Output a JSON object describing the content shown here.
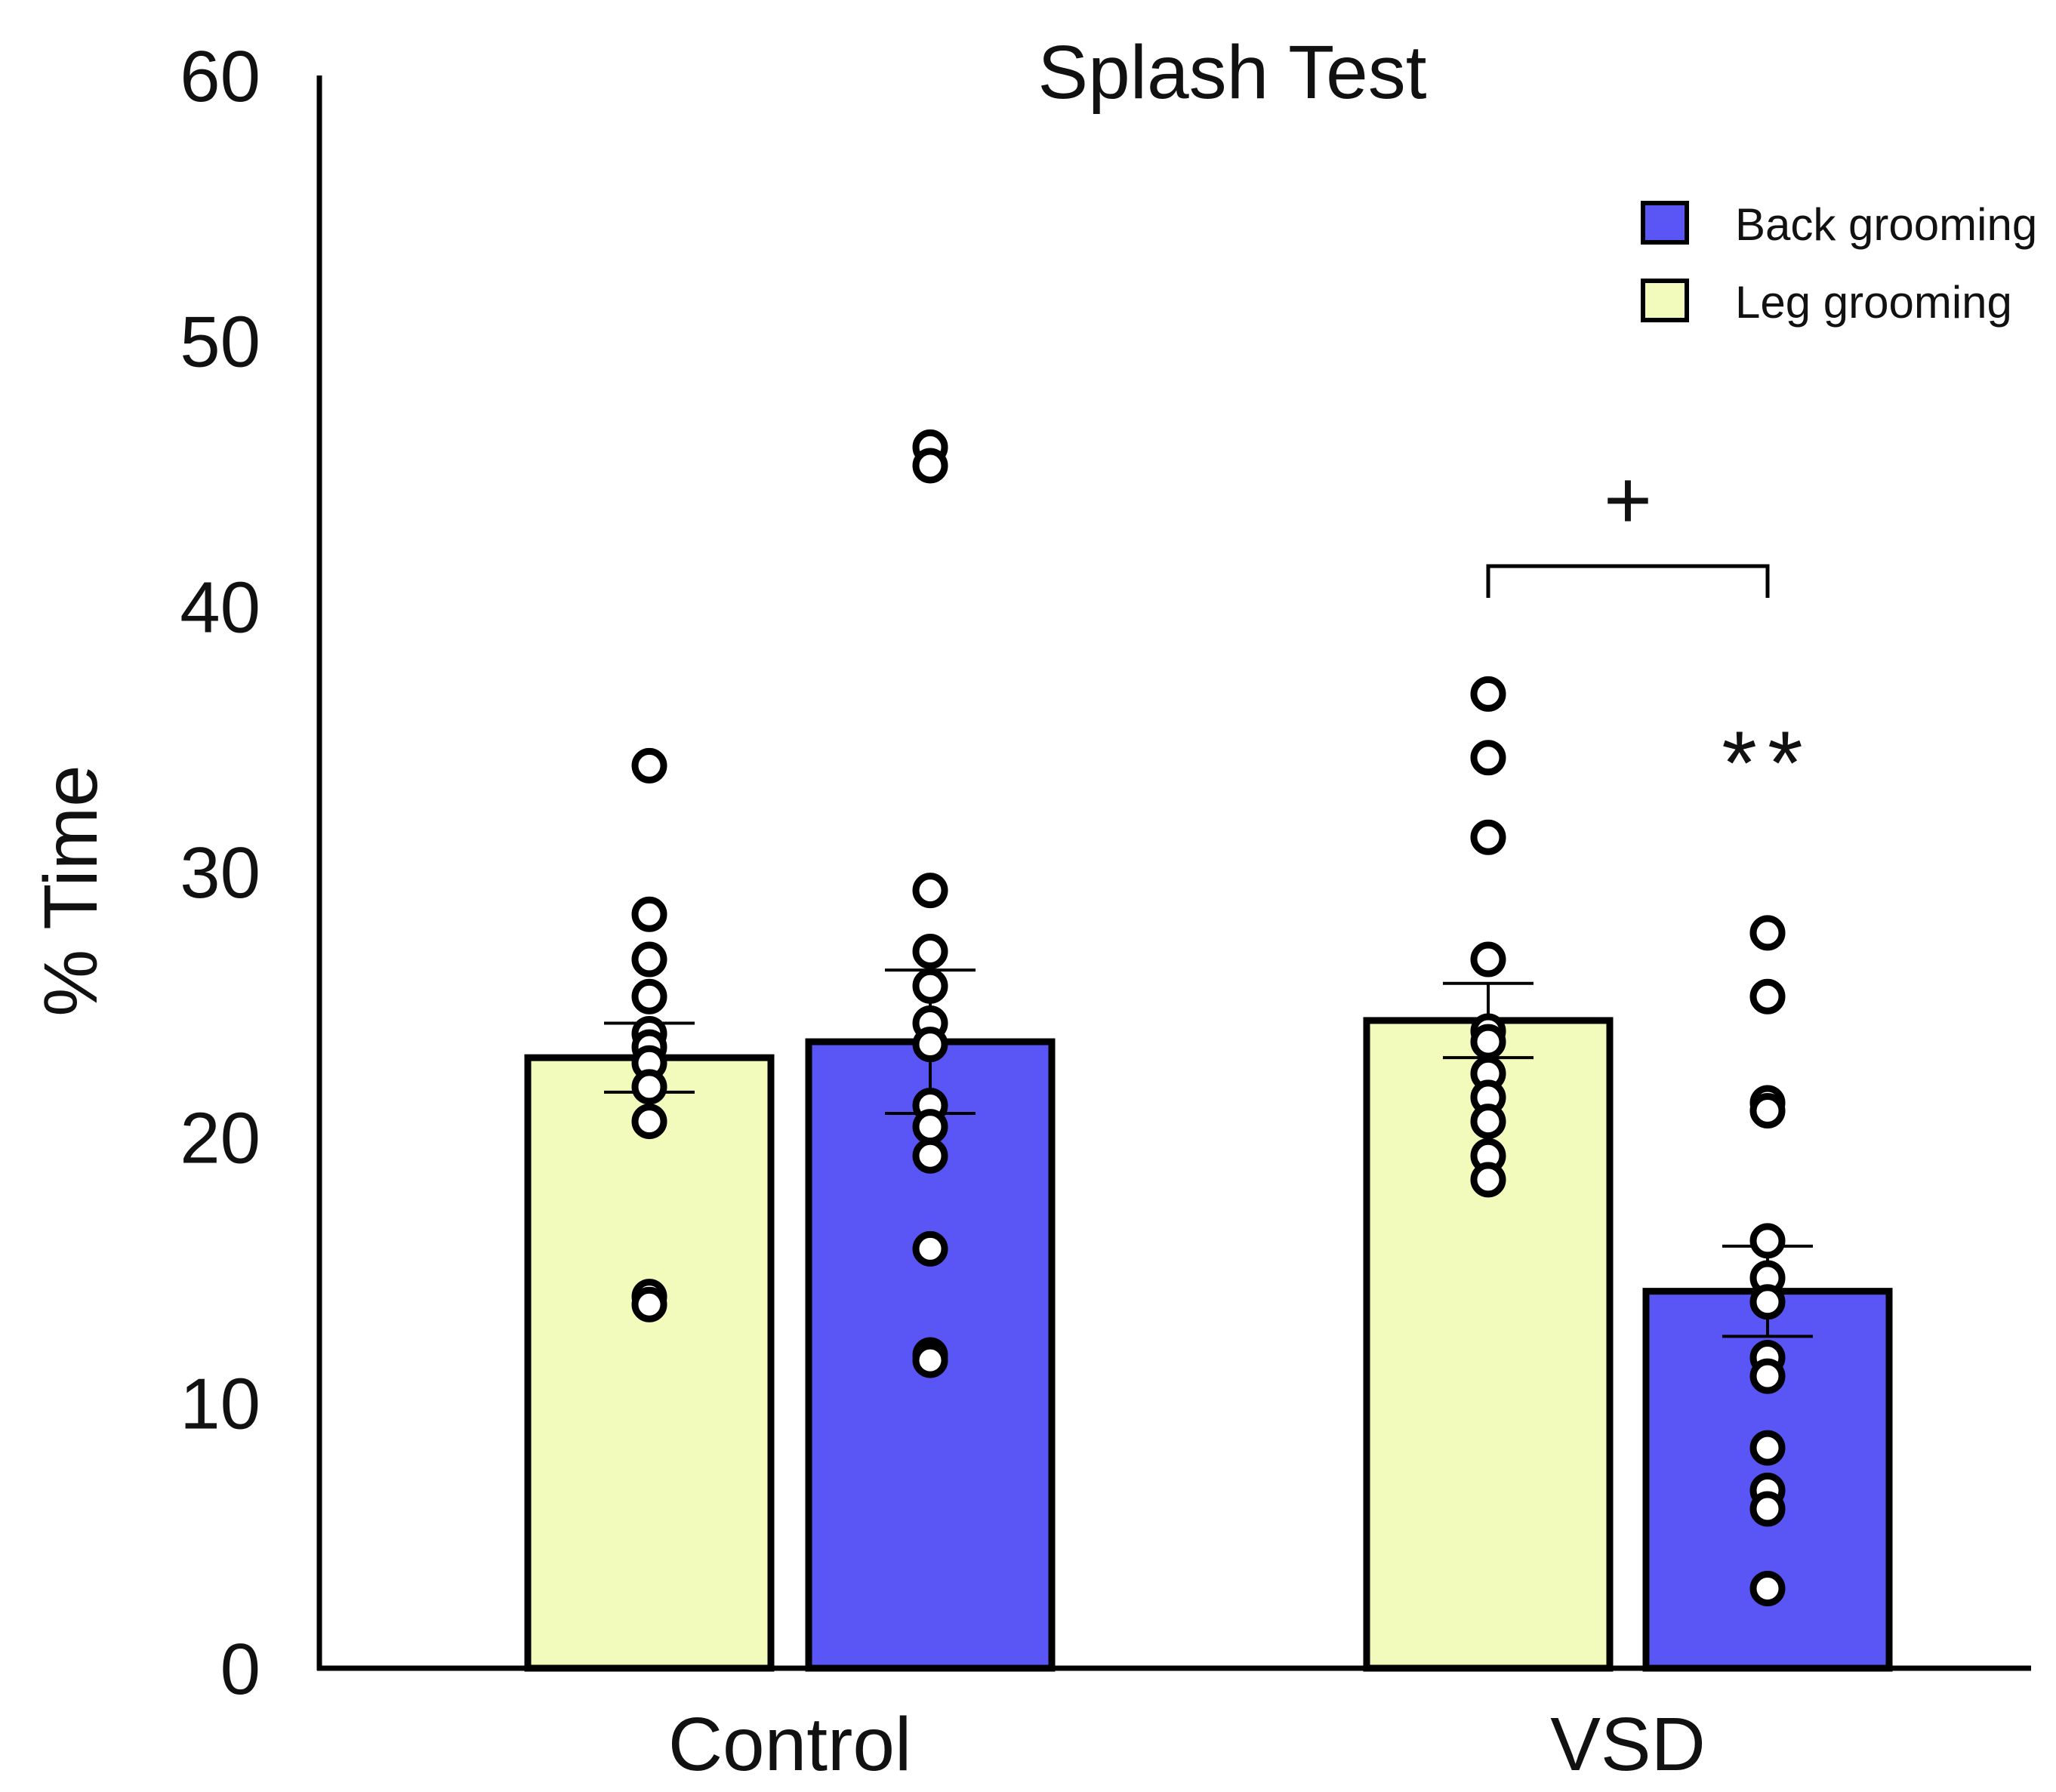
{
  "chart_data": {
    "type": "bar",
    "title": "Splash Test",
    "xlabel": "",
    "ylabel": "% Time",
    "ylim": [
      0,
      60
    ],
    "yticks": [
      0,
      10,
      20,
      30,
      40,
      50,
      60
    ],
    "categories": [
      "Control",
      "VSD"
    ],
    "legend_position": "top-right",
    "series": [
      {
        "name": "Leg grooming",
        "color": "#f2fbbc",
        "values": [
          23.0,
          24.4
        ],
        "errors": [
          1.3,
          1.4
        ],
        "points": [
          [
            34.0,
            28.4,
            26.7,
            25.3,
            23.9,
            23.4,
            22.8,
            21.9,
            20.6,
            14.0,
            13.7
          ],
          [
            36.7,
            34.3,
            31.3,
            26.7,
            24.0,
            23.6,
            22.4,
            21.5,
            20.6,
            19.3,
            18.4
          ]
        ]
      },
      {
        "name": "Back grooming",
        "color": "#5a56f6",
        "values": [
          23.6,
          14.2
        ],
        "errors": [
          2.7,
          1.7
        ],
        "points": [
          [
            46.0,
            45.3,
            29.3,
            27.0,
            25.7,
            24.3,
            23.5,
            21.2,
            20.4,
            19.3,
            15.8,
            11.8,
            11.6
          ],
          [
            27.7,
            25.3,
            21.3,
            21.0,
            16.1,
            14.7,
            13.8,
            11.7,
            11.0,
            8.3,
            6.7,
            6.0,
            3.0
          ]
        ]
      }
    ],
    "annotations": [
      {
        "text": "+",
        "category": "VSD",
        "type": "bracket",
        "between": [
          "Leg grooming",
          "Back grooming"
        ]
      },
      {
        "text": "**",
        "category": "VSD",
        "series": "Back grooming"
      }
    ]
  }
}
